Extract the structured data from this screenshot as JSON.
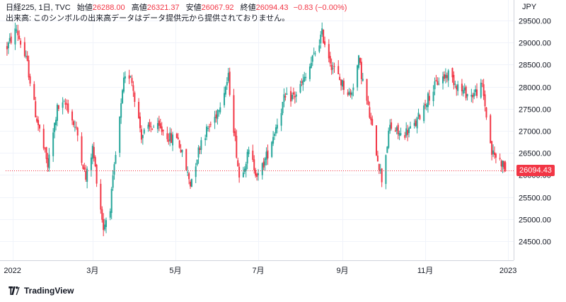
{
  "legend": {
    "symbol": "日経225, 1日, TVC",
    "open_label": "始値",
    "open_value": "26288.00",
    "high_label": "高値",
    "high_value": "26321.37",
    "low_label": "安値",
    "low_value": "26067.92",
    "close_label": "終値",
    "close_value": "26094.43",
    "change": "−0.83 (−0.00%)",
    "volume_notice": "出来高: このシンボルの出来高データはデータ提供元から提供されておりません。"
  },
  "currency": "JPY",
  "brand": {
    "name": "TradingView",
    "logo_icon": "tradingview-logo-icon"
  },
  "colors": {
    "up": "#26a69a",
    "down": "#f23645",
    "grid": "#f0f3fa",
    "price_line": "#f23645"
  },
  "chart_data": {
    "type": "candlestick",
    "current_price": 26094.43,
    "current_price_label": "26094.43",
    "y_axis": {
      "ticks": [
        24500,
        25000,
        25500,
        26000,
        26500,
        27000,
        27500,
        28000,
        28500,
        29000,
        29500
      ],
      "tick_labels": [
        "24500.00",
        "25000.00",
        "25500.00",
        "26000.00",
        "26500.00",
        "27000.00",
        "27500.00",
        "28000.00",
        "28500.00",
        "29000.00",
        "29500.00"
      ],
      "range": [
        24130,
        29900
      ]
    },
    "x_axis": {
      "labels": [
        "2022",
        "3月",
        "5月",
        "7月",
        "9月",
        "11月",
        "2023"
      ],
      "label_dates": [
        "2022-01-01",
        "2022-03-01",
        "2022-05-01",
        "2022-07-01",
        "2022-09-01",
        "2022-11-01",
        "2023-01-01"
      ],
      "range": [
        "2021-12-27",
        "2023-01-03"
      ]
    },
    "anchors": [
      [
        "2021-12-28",
        28900
      ],
      [
        "2022-01-04",
        29300
      ],
      [
        "2022-01-12",
        28500
      ],
      [
        "2022-01-18",
        27400
      ],
      [
        "2022-01-27",
        26200
      ],
      [
        "2022-02-03",
        27500
      ],
      [
        "2022-02-10",
        27600
      ],
      [
        "2022-02-18",
        26900
      ],
      [
        "2022-02-24",
        25900
      ],
      [
        "2022-03-01",
        26600
      ],
      [
        "2022-03-09",
        24800
      ],
      [
        "2022-03-14",
        25300
      ],
      [
        "2022-03-24",
        28100
      ],
      [
        "2022-03-29",
        28300
      ],
      [
        "2022-04-06",
        26900
      ],
      [
        "2022-04-14",
        27100
      ],
      [
        "2022-04-22",
        27000
      ],
      [
        "2022-04-28",
        26800
      ],
      [
        "2022-05-02",
        26900
      ],
      [
        "2022-05-12",
        25800
      ],
      [
        "2022-05-20",
        26800
      ],
      [
        "2022-05-30",
        27300
      ],
      [
        "2022-06-09",
        28200
      ],
      [
        "2022-06-17",
        25950
      ],
      [
        "2022-06-24",
        26500
      ],
      [
        "2022-07-01",
        25950
      ],
      [
        "2022-07-08",
        26500
      ],
      [
        "2022-07-20",
        27700
      ],
      [
        "2022-07-28",
        27800
      ],
      [
        "2022-08-05",
        28200
      ],
      [
        "2022-08-17",
        29200
      ],
      [
        "2022-08-24",
        28500
      ],
      [
        "2022-08-31",
        28100
      ],
      [
        "2022-09-07",
        27800
      ],
      [
        "2022-09-13",
        28600
      ],
      [
        "2022-09-20",
        27500
      ],
      [
        "2022-09-30",
        25900
      ],
      [
        "2022-10-06",
        27100
      ],
      [
        "2022-10-14",
        26900
      ],
      [
        "2022-10-24",
        27100
      ],
      [
        "2022-11-02",
        27700
      ],
      [
        "2022-11-10",
        28100
      ],
      [
        "2022-11-18",
        28300
      ],
      [
        "2022-11-28",
        27900
      ],
      [
        "2022-12-05",
        27800
      ],
      [
        "2022-12-13",
        28000
      ],
      [
        "2022-12-20",
        26500
      ],
      [
        "2022-12-27",
        26300
      ],
      [
        "2022-12-30",
        26094
      ]
    ],
    "last_candle": {
      "open": 26288.0,
      "high": 26321.37,
      "low": 26067.92,
      "close": 26094.43
    }
  }
}
